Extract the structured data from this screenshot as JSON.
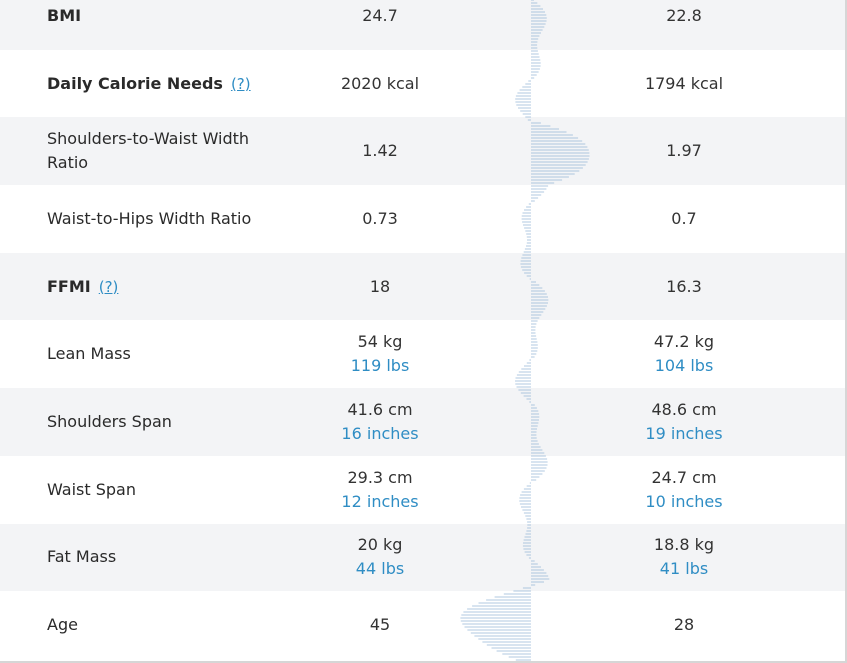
{
  "rows": [
    {
      "label": "BMI",
      "bold": true,
      "help": "",
      "left": {
        "main": "24.7",
        "sub": ""
      },
      "right": {
        "main": "22.8",
        "sub": ""
      }
    },
    {
      "label": "Daily Calorie Needs",
      "bold": true,
      "help": "(?)",
      "left": {
        "main": "2020 kcal",
        "sub": ""
      },
      "right": {
        "main": "1794 kcal",
        "sub": ""
      }
    },
    {
      "label": "Shoulders-to-Waist Width Ratio",
      "bold": false,
      "help": "",
      "left": {
        "main": "1.42",
        "sub": ""
      },
      "right": {
        "main": "1.97",
        "sub": ""
      }
    },
    {
      "label": "Waist-to-Hips Width Ratio",
      "bold": false,
      "help": "",
      "left": {
        "main": "0.73",
        "sub": ""
      },
      "right": {
        "main": "0.7",
        "sub": ""
      }
    },
    {
      "label": "FFMI",
      "bold": true,
      "help": "(?)",
      "left": {
        "main": "18",
        "sub": ""
      },
      "right": {
        "main": "16.3",
        "sub": ""
      }
    },
    {
      "label": "Lean Mass",
      "bold": false,
      "help": "",
      "left": {
        "main": "54 kg",
        "sub": "119 lbs"
      },
      "right": {
        "main": "47.2 kg",
        "sub": "104 lbs"
      }
    },
    {
      "label": "Shoulders Span",
      "bold": false,
      "help": "",
      "left": {
        "main": "41.6 cm",
        "sub": "16 inches"
      },
      "right": {
        "main": "48.6 cm",
        "sub": "19 inches"
      }
    },
    {
      "label": "Waist Span",
      "bold": false,
      "help": "",
      "left": {
        "main": "29.3 cm",
        "sub": "12 inches"
      },
      "right": {
        "main": "24.7 cm",
        "sub": "10 inches"
      }
    },
    {
      "label": "Fat Mass",
      "bold": false,
      "help": "",
      "left": {
        "main": "20 kg",
        "sub": "44 lbs"
      },
      "right": {
        "main": "18.8 kg",
        "sub": "41 lbs"
      }
    },
    {
      "label": "Age",
      "bold": false,
      "help": "",
      "left": {
        "main": "45",
        "sub": ""
      },
      "right": {
        "main": "28",
        "sub": ""
      }
    }
  ],
  "colors": {
    "accent": "#2f8dc4",
    "wave": "#8fb3d6",
    "row_shaded": "#f3f4f6",
    "text": "#2a2a2a"
  }
}
